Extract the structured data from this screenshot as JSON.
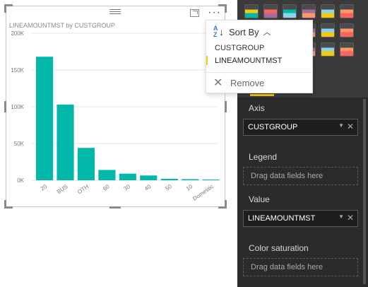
{
  "visual": {
    "title": "LINEAMOUNTMST by CUSTGROUP",
    "more": "···"
  },
  "chart_data": {
    "type": "bar",
    "title": "LINEAMOUNTMST by CUSTGROUP",
    "categories": [
      "20",
      "BUS",
      "OTH",
      "60",
      "30",
      "40",
      "50",
      "10",
      "Domestic"
    ],
    "values": [
      168000,
      103000,
      44000,
      14000,
      9000,
      6500,
      2000,
      1500,
      1000
    ],
    "ylim": [
      0,
      200000
    ],
    "yticks": [
      {
        "value": 0,
        "label": "0K"
      },
      {
        "value": 50000,
        "label": "50K"
      },
      {
        "value": 100000,
        "label": "100K"
      },
      {
        "value": 150000,
        "label": "150K"
      },
      {
        "value": 200000,
        "label": "200K"
      }
    ],
    "grid": true,
    "bar_color": "#01b8aa"
  },
  "sort_menu": {
    "header": "Sort By",
    "options": [
      "CUSTGROUP",
      "LINEAMOUNTMST"
    ],
    "selected": "LINEAMOUNTMST",
    "remove": "Remove"
  },
  "fields_pane": {
    "axis_label": "Axis",
    "axis_value": "CUSTGROUP",
    "legend_label": "Legend",
    "legend_placeholder": "Drag data fields here",
    "value_label": "Value",
    "value_value": "LINEAMOUNTMST",
    "color_label": "Color saturation",
    "color_placeholder": "Drag data fields here"
  },
  "vis_icons": [
    "line-chart-icon",
    "area-chart-icon",
    "stacked-area-icon",
    "line-column-icon",
    "line-clustered-column-icon",
    "ribbon-chart-icon",
    "scatter-icon",
    "pie-icon",
    "donut-icon",
    "treemap-icon",
    "map-icon",
    "filled-map-icon",
    "gauge-icon",
    "card-icon",
    "multirow-card-icon",
    "kpi-icon",
    "card-number-icon",
    "funnel-icon"
  ]
}
